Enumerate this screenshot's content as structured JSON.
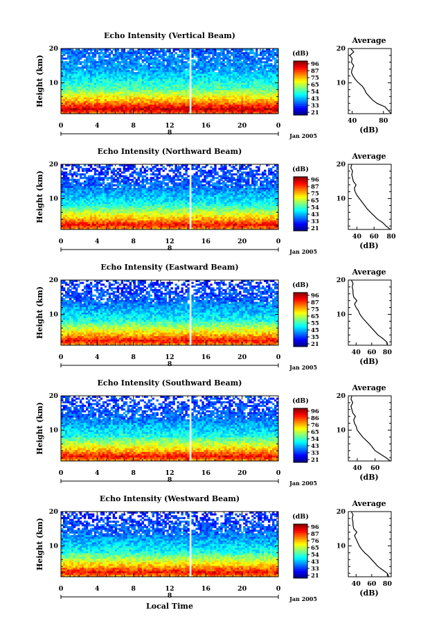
{
  "figure": {
    "xlabel_bottom": "Local Time",
    "date_label": "Jan 2005",
    "day_label": "8",
    "colorbar_title": "(dB)",
    "colorbar_ticks": [
      "96",
      "87",
      "75",
      "65",
      "54",
      "43",
      "33",
      "21"
    ],
    "average_title": "Average",
    "average_xlabel": "(dB)",
    "ylabel": "Height (km)"
  },
  "chart_data": [
    {
      "type": "heatmap",
      "title": "Echo Intensity (Vertical Beam)",
      "xticks": [
        "0",
        "4",
        "8",
        "12",
        "16",
        "20",
        "0"
      ],
      "yticks": [
        "20",
        "10"
      ],
      "xlim": [
        0,
        24
      ],
      "ylim": [
        1,
        20
      ],
      "colorbar_ticks": [
        "96",
        "87",
        "75",
        "65",
        "54",
        "43",
        "33",
        "21"
      ],
      "gap_hour": 14.2,
      "profile": {
        "title": "Average",
        "xticks": [
          "40",
          "80"
        ],
        "xlim": [
          35,
          90
        ],
        "yticks": [
          "20",
          "10"
        ],
        "height": [
          1,
          2,
          3,
          4,
          5,
          6,
          7,
          8,
          9,
          10,
          11,
          12,
          13,
          14,
          15,
          16,
          17,
          18,
          19,
          20
        ],
        "db": [
          90,
          86,
          82,
          72,
          66,
          62,
          58,
          56,
          53,
          48,
          44,
          41,
          39,
          40,
          42,
          39,
          40,
          37,
          42,
          38
        ]
      }
    },
    {
      "type": "heatmap",
      "title": "Echo Intensity (Northward Beam)",
      "xticks": [
        "0",
        "4",
        "8",
        "12",
        "16",
        "20",
        "0"
      ],
      "yticks": [
        "20",
        "10"
      ],
      "xlim": [
        0,
        24
      ],
      "ylim": [
        1,
        20
      ],
      "colorbar_ticks": [
        "96",
        "87",
        "75",
        "65",
        "54",
        "43",
        "33",
        "21"
      ],
      "gap_hour": 14.2,
      "profile": {
        "title": "Average",
        "xticks": [
          "40",
          "60",
          "80"
        ],
        "xlim": [
          30,
          80
        ],
        "yticks": [
          "20",
          "10"
        ],
        "height": [
          1,
          2,
          3,
          4,
          5,
          6,
          7,
          8,
          9,
          10,
          11,
          12,
          13,
          14,
          15,
          16,
          17,
          18,
          19,
          20
        ],
        "db": [
          79,
          74,
          70,
          64,
          60,
          56,
          52,
          49,
          46,
          43,
          40,
          38,
          37,
          39,
          36,
          35,
          34,
          35,
          33,
          34
        ]
      }
    },
    {
      "type": "heatmap",
      "title": "Echo Intensity (Eastward Beam)",
      "xticks": [
        "0",
        "4",
        "8",
        "12",
        "16",
        "20",
        "0"
      ],
      "yticks": [
        "20",
        "10"
      ],
      "xlim": [
        0,
        24
      ],
      "ylim": [
        1,
        20
      ],
      "colorbar_ticks": [
        "96",
        "87",
        "75",
        "65",
        "55",
        "45",
        "35",
        "21"
      ],
      "gap_hour": 14.2,
      "profile": {
        "title": "Average",
        "xticks": [
          "40",
          "60",
          "80"
        ],
        "xlim": [
          30,
          85
        ],
        "yticks": [
          "20",
          "10"
        ],
        "height": [
          1,
          2,
          3,
          4,
          5,
          6,
          7,
          8,
          9,
          10,
          11,
          12,
          13,
          14,
          15,
          16,
          17,
          18,
          19,
          20
        ],
        "db": [
          80,
          79,
          74,
          68,
          64,
          60,
          56,
          52,
          48,
          45,
          43,
          40,
          38,
          41,
          37,
          36,
          36,
          35,
          36,
          34
        ]
      }
    },
    {
      "type": "heatmap",
      "title": "Echo Intensity (Southward Beam)",
      "xticks": [
        "0",
        "4",
        "8",
        "12",
        "16",
        "20",
        "0"
      ],
      "yticks": [
        "20",
        "10"
      ],
      "xlim": [
        0,
        24
      ],
      "ylim": [
        1,
        20
      ],
      "colorbar_ticks": [
        "96",
        "86",
        "76",
        "65",
        "54",
        "43",
        "33",
        "21"
      ],
      "gap_hour": 14.2,
      "profile": {
        "title": "Average",
        "xticks": [
          "40",
          "60"
        ],
        "xlim": [
          30,
          78
        ],
        "yticks": [
          "20",
          "10"
        ],
        "height": [
          1,
          2,
          3,
          4,
          5,
          6,
          7,
          8,
          9,
          10,
          11,
          12,
          13,
          14,
          15,
          16,
          17,
          18,
          19,
          20
        ],
        "db": [
          77,
          72,
          66,
          60,
          57,
          54,
          50,
          46,
          43,
          40,
          39,
          37,
          36,
          38,
          35,
          34,
          33,
          35,
          33,
          34
        ]
      }
    },
    {
      "type": "heatmap",
      "title": "Echo Intensity (Westward Beam)",
      "xticks": [
        "0",
        "4",
        "8",
        "12",
        "16",
        "20",
        "0"
      ],
      "yticks": [
        "20",
        "10"
      ],
      "xlim": [
        0,
        24
      ],
      "ylim": [
        1,
        20
      ],
      "colorbar_ticks": [
        "96",
        "87",
        "76",
        "65",
        "54",
        "43",
        "33",
        "21"
      ],
      "gap_hour": 14.2,
      "profile": {
        "title": "Average",
        "xticks": [
          "40",
          "60",
          "80"
        ],
        "xlim": [
          30,
          85
        ],
        "yticks": [
          "20",
          "10"
        ],
        "height": [
          1,
          2,
          3,
          4,
          5,
          6,
          7,
          8,
          9,
          10,
          11,
          12,
          13,
          14,
          15,
          16,
          17,
          18,
          19,
          20
        ],
        "db": [
          82,
          80,
          74,
          68,
          64,
          60,
          56,
          51,
          47,
          44,
          42,
          40,
          38,
          41,
          37,
          36,
          36,
          35,
          36,
          34
        ]
      }
    }
  ]
}
